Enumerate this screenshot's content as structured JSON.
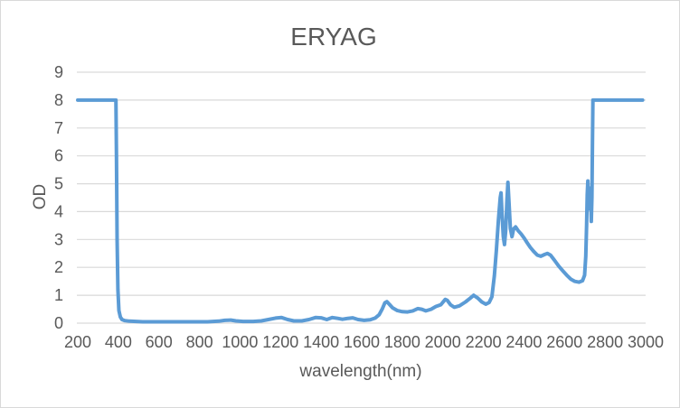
{
  "chart_data": {
    "type": "line",
    "title": "ERYAG",
    "xlabel": "wavelength(nm)",
    "ylabel": "OD",
    "xlim": [
      200,
      3000
    ],
    "ylim": [
      0,
      9
    ],
    "x_ticks": [
      200,
      400,
      600,
      800,
      1000,
      1200,
      1400,
      1600,
      1800,
      2000,
      2200,
      2400,
      2600,
      2800,
      3000
    ],
    "y_ticks": [
      0,
      1,
      2,
      3,
      4,
      5,
      6,
      7,
      8,
      9
    ],
    "grid": "horizontal",
    "legend": "none",
    "colors": {
      "line": "#5B9BD5",
      "grid": "#D9D9D9",
      "text": "#595959",
      "border": "#D9D9D9",
      "background": "#FFFFFF"
    },
    "series": [
      {
        "name": "ERYAG",
        "points": [
          [
            200,
            8
          ],
          [
            388,
            8
          ],
          [
            391,
            6
          ],
          [
            394,
            3
          ],
          [
            398,
            1.2
          ],
          [
            403,
            0.45
          ],
          [
            410,
            0.22
          ],
          [
            418,
            0.13
          ],
          [
            432,
            0.09
          ],
          [
            455,
            0.07
          ],
          [
            520,
            0.05
          ],
          [
            600,
            0.05
          ],
          [
            680,
            0.05
          ],
          [
            760,
            0.05
          ],
          [
            840,
            0.05
          ],
          [
            895,
            0.07
          ],
          [
            925,
            0.1
          ],
          [
            955,
            0.11
          ],
          [
            980,
            0.08
          ],
          [
            1015,
            0.06
          ],
          [
            1065,
            0.06
          ],
          [
            1105,
            0.08
          ],
          [
            1140,
            0.13
          ],
          [
            1175,
            0.18
          ],
          [
            1205,
            0.2
          ],
          [
            1235,
            0.13
          ],
          [
            1265,
            0.08
          ],
          [
            1305,
            0.08
          ],
          [
            1340,
            0.13
          ],
          [
            1372,
            0.2
          ],
          [
            1400,
            0.19
          ],
          [
            1428,
            0.13
          ],
          [
            1455,
            0.2
          ],
          [
            1482,
            0.17
          ],
          [
            1505,
            0.14
          ],
          [
            1532,
            0.17
          ],
          [
            1556,
            0.19
          ],
          [
            1582,
            0.13
          ],
          [
            1612,
            0.1
          ],
          [
            1642,
            0.12
          ],
          [
            1666,
            0.18
          ],
          [
            1686,
            0.3
          ],
          [
            1702,
            0.52
          ],
          [
            1714,
            0.73
          ],
          [
            1724,
            0.77
          ],
          [
            1736,
            0.68
          ],
          [
            1752,
            0.55
          ],
          [
            1776,
            0.45
          ],
          [
            1800,
            0.41
          ],
          [
            1826,
            0.4
          ],
          [
            1852,
            0.44
          ],
          [
            1876,
            0.52
          ],
          [
            1896,
            0.5
          ],
          [
            1916,
            0.44
          ],
          [
            1942,
            0.5
          ],
          [
            1966,
            0.6
          ],
          [
            1990,
            0.66
          ],
          [
            2012,
            0.85
          ],
          [
            2022,
            0.82
          ],
          [
            2038,
            0.66
          ],
          [
            2056,
            0.57
          ],
          [
            2082,
            0.62
          ],
          [
            2112,
            0.76
          ],
          [
            2136,
            0.9
          ],
          [
            2152,
            1.0
          ],
          [
            2172,
            0.9
          ],
          [
            2192,
            0.76
          ],
          [
            2212,
            0.68
          ],
          [
            2228,
            0.74
          ],
          [
            2242,
            0.95
          ],
          [
            2254,
            1.7
          ],
          [
            2264,
            2.6
          ],
          [
            2274,
            3.7
          ],
          [
            2283,
            4.5
          ],
          [
            2287,
            4.67
          ],
          [
            2292,
            3.9
          ],
          [
            2298,
            3.1
          ],
          [
            2304,
            2.82
          ],
          [
            2310,
            3.3
          ],
          [
            2316,
            4.4
          ],
          [
            2321,
            5.05
          ],
          [
            2327,
            4.2
          ],
          [
            2333,
            3.4
          ],
          [
            2341,
            3.1
          ],
          [
            2349,
            3.38
          ],
          [
            2359,
            3.45
          ],
          [
            2371,
            3.32
          ],
          [
            2386,
            3.2
          ],
          [
            2401,
            3.05
          ],
          [
            2416,
            2.88
          ],
          [
            2431,
            2.72
          ],
          [
            2447,
            2.58
          ],
          [
            2466,
            2.44
          ],
          [
            2483,
            2.4
          ],
          [
            2501,
            2.46
          ],
          [
            2516,
            2.5
          ],
          [
            2531,
            2.44
          ],
          [
            2551,
            2.25
          ],
          [
            2571,
            2.05
          ],
          [
            2591,
            1.88
          ],
          [
            2611,
            1.72
          ],
          [
            2631,
            1.58
          ],
          [
            2651,
            1.5
          ],
          [
            2671,
            1.47
          ],
          [
            2689,
            1.52
          ],
          [
            2699,
            1.72
          ],
          [
            2705,
            2.4
          ],
          [
            2709,
            3.5
          ],
          [
            2712,
            4.6
          ],
          [
            2715,
            5.1
          ],
          [
            2718,
            4.1
          ],
          [
            2722,
            4.85
          ],
          [
            2726,
            4.2
          ],
          [
            2729,
            4.65
          ],
          [
            2732,
            3.65
          ],
          [
            2735,
            4.5
          ],
          [
            2738,
            6.5
          ],
          [
            2740,
            8
          ],
          [
            2985,
            8
          ]
        ]
      }
    ]
  }
}
